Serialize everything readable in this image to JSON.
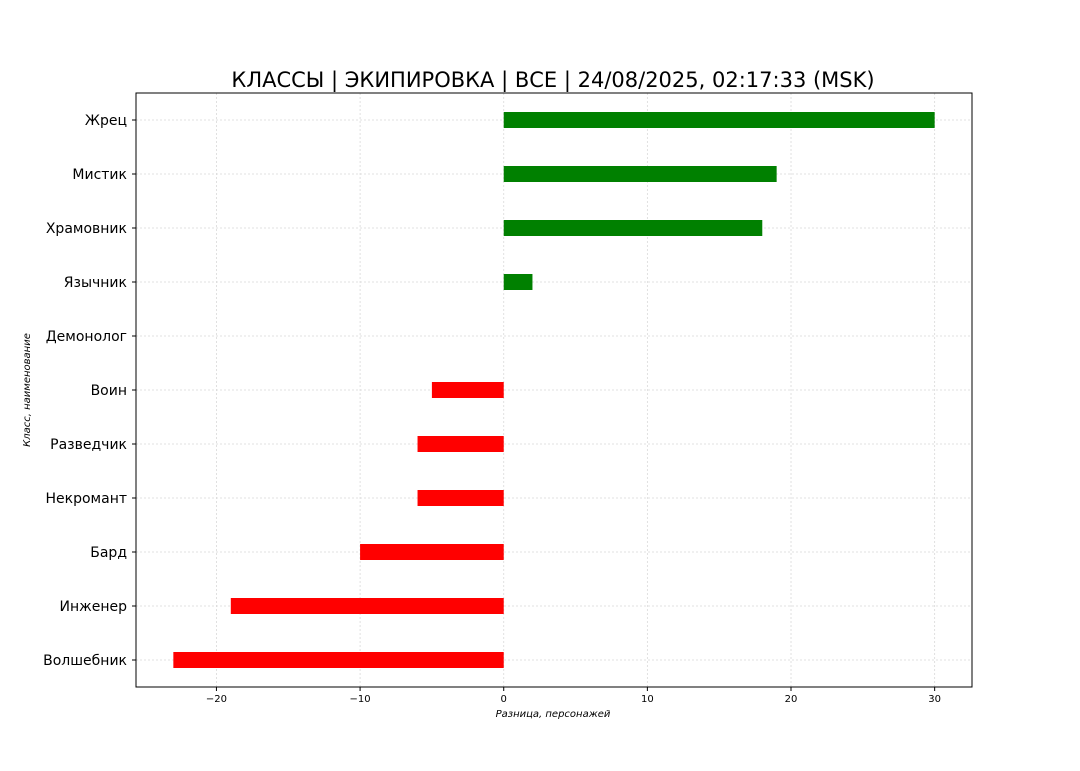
{
  "chart_data": {
    "type": "bar",
    "orientation": "horizontal",
    "title": "КЛАССЫ | ЭКИПИРОВКА | ВСЕ | 24/08/2025, 02:17:33 (MSK)",
    "xlabel": "Разница, персонажей",
    "ylabel": "Класс, наименование",
    "categories": [
      "Жрец",
      "Мистик",
      "Храмовник",
      "Язычник",
      "Демонолог",
      "Воин",
      "Разведчик",
      "Некромант",
      "Бард",
      "Инженер",
      "Волшебник"
    ],
    "values": [
      30,
      19,
      18,
      2,
      0,
      -5,
      -6,
      -6,
      -10,
      -19,
      -23
    ],
    "xlim": [
      -25.6,
      32.6
    ],
    "xticks": [
      -20,
      -10,
      0,
      10,
      20,
      30
    ],
    "xtick_labels": [
      "−20",
      "−10",
      "0",
      "10",
      "20",
      "30"
    ],
    "grid": true,
    "colors": {
      "positive": "#008000",
      "negative": "#ff0000"
    }
  }
}
